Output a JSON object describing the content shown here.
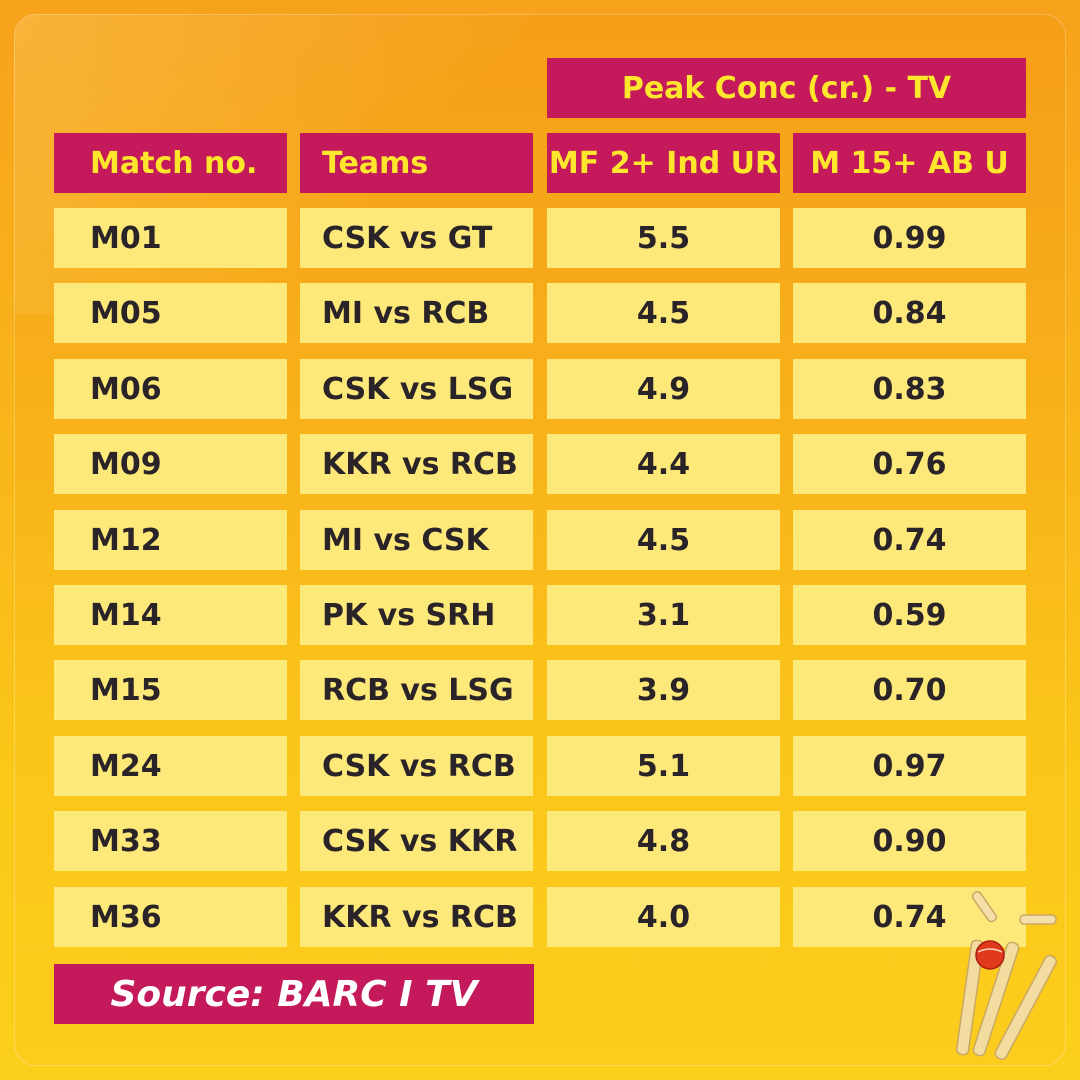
{
  "chart_data": {
    "type": "table",
    "group_header": "Peak Conc (cr.) - TV",
    "columns": [
      "Match no.",
      "Teams",
      "MF 2+ Ind UR",
      "M 15+ AB U"
    ],
    "rows": [
      [
        "M01",
        "CSK vs GT",
        "5.5",
        "0.99"
      ],
      [
        "M05",
        "MI vs RCB",
        "4.5",
        "0.84"
      ],
      [
        "M06",
        "CSK vs LSG",
        "4.9",
        "0.83"
      ],
      [
        "M09",
        "KKR vs RCB",
        "4.4",
        "0.76"
      ],
      [
        "M12",
        "MI vs CSK",
        "4.5",
        "0.74"
      ],
      [
        "M14",
        "PK vs SRH",
        "3.1",
        "0.59"
      ],
      [
        "M15",
        "RCB vs LSG",
        "3.9",
        "0.70"
      ],
      [
        "M24",
        "CSK vs RCB",
        "5.1",
        "0.97"
      ],
      [
        "M33",
        "CSK vs KKR",
        "4.8",
        "0.90"
      ],
      [
        "M36",
        "KKR vs RCB",
        "4.0",
        "0.74"
      ]
    ]
  },
  "footer": {
    "source": "Source: BARC I TV"
  },
  "colors": {
    "header_bg": "#c4195a",
    "header_text": "#fde62c",
    "cell_bg": "#fde87a",
    "cell_text": "#2a2328"
  },
  "decoration": {
    "icon": "cricket-stumps-ball-icon"
  }
}
